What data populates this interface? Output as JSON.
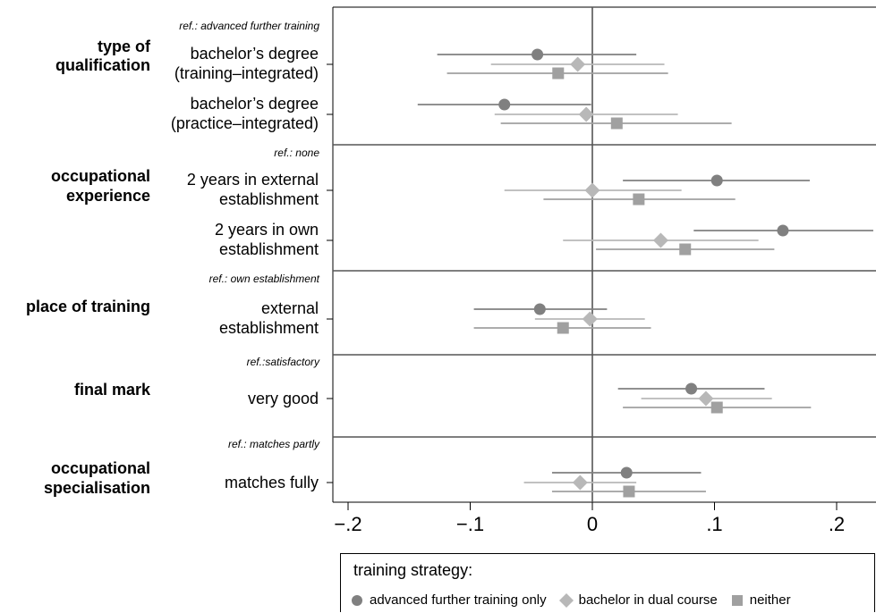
{
  "chart_data": {
    "type": "scatter",
    "subtype": "coefficient-plot",
    "orientation": "horizontal",
    "xlim": [
      -0.22,
      0.23
    ],
    "xticks": [
      -0.2,
      -0.1,
      0,
      0.1,
      0.2
    ],
    "xtick_labels": [
      "−.2",
      "−.1",
      "0",
      ".1",
      ".2"
    ],
    "reference_line": 0,
    "legend": {
      "title": "training strategy:",
      "placement": "bottom"
    },
    "series": [
      {
        "name": "advanced further training only",
        "marker": "circle",
        "color": "#808080"
      },
      {
        "name": "bachelor in dual course",
        "marker": "diamond",
        "color": "#b8b8b8"
      },
      {
        "name": "neither",
        "marker": "square",
        "color": "#a0a0a0"
      }
    ],
    "groups": [
      {
        "heading": [
          "type of",
          "qualification"
        ],
        "reference": "ref.: advanced further training",
        "items": [
          {
            "label": [
              "bachelor’s degree",
              "(training–integrated)"
            ],
            "estimates": [
              {
                "value": -0.045,
                "ci": [
                  -0.127,
                  0.036
                ]
              },
              {
                "value": -0.012,
                "ci": [
                  -0.083,
                  0.059
                ]
              },
              {
                "value": -0.028,
                "ci": [
                  -0.119,
                  0.062
                ]
              }
            ]
          },
          {
            "label": [
              "bachelor’s degree",
              "(practice–integrated)"
            ],
            "estimates": [
              {
                "value": -0.072,
                "ci": [
                  -0.143,
                  -0.001
                ]
              },
              {
                "value": -0.005,
                "ci": [
                  -0.08,
                  0.07
                ]
              },
              {
                "value": 0.02,
                "ci": [
                  -0.075,
                  0.114
                ]
              }
            ]
          }
        ]
      },
      {
        "heading": [
          "occupational",
          "experience"
        ],
        "reference": "ref.: none",
        "items": [
          {
            "label": [
              "2 years in external",
              "establishment"
            ],
            "estimates": [
              {
                "value": 0.102,
                "ci": [
                  0.025,
                  0.178
                ]
              },
              {
                "value": 0.0,
                "ci": [
                  -0.072,
                  0.073
                ]
              },
              {
                "value": 0.038,
                "ci": [
                  -0.04,
                  0.117
                ]
              }
            ]
          },
          {
            "label": [
              "2 years in own",
              "establishment"
            ],
            "estimates": [
              {
                "value": 0.156,
                "ci": [
                  0.083,
                  0.23
                ]
              },
              {
                "value": 0.056,
                "ci": [
                  -0.024,
                  0.136
                ]
              },
              {
                "value": 0.076,
                "ci": [
                  0.003,
                  0.149
                ]
              }
            ]
          }
        ]
      },
      {
        "heading": [
          "place of training"
        ],
        "reference": "ref.: own establishment",
        "items": [
          {
            "label": [
              "external",
              "establishment"
            ],
            "estimates": [
              {
                "value": -0.043,
                "ci": [
                  -0.097,
                  0.012
                ]
              },
              {
                "value": -0.002,
                "ci": [
                  -0.047,
                  0.043
                ]
              },
              {
                "value": -0.024,
                "ci": [
                  -0.097,
                  0.048
                ]
              }
            ]
          }
        ]
      },
      {
        "heading": [
          "final mark"
        ],
        "reference": "ref.:satisfactory",
        "items": [
          {
            "label": [
              "very good"
            ],
            "estimates": [
              {
                "value": 0.081,
                "ci": [
                  0.021,
                  0.141
                ]
              },
              {
                "value": 0.093,
                "ci": [
                  0.04,
                  0.147
                ]
              },
              {
                "value": 0.102,
                "ci": [
                  0.025,
                  0.179
                ]
              }
            ]
          }
        ]
      },
      {
        "heading": [
          "occupational",
          "specialisation"
        ],
        "reference": "ref.: matches partly",
        "items": [
          {
            "label": [
              "matches fully"
            ],
            "estimates": [
              {
                "value": 0.028,
                "ci": [
                  -0.033,
                  0.089
                ]
              },
              {
                "value": -0.01,
                "ci": [
                  -0.056,
                  0.036
                ]
              },
              {
                "value": 0.03,
                "ci": [
                  -0.033,
                  0.093
                ]
              }
            ]
          }
        ]
      }
    ]
  }
}
